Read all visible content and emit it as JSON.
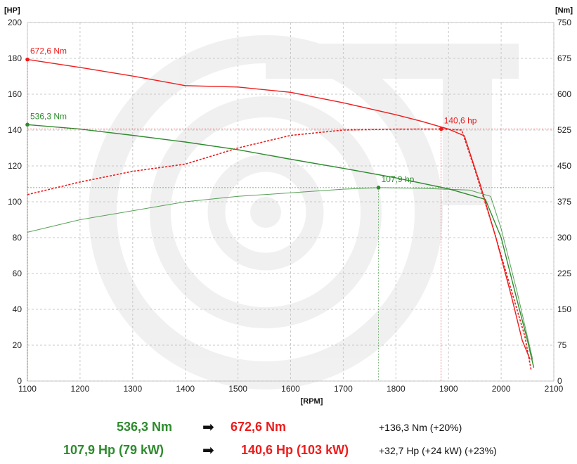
{
  "chart_data": {
    "type": "line",
    "xlabel": "[RPM]",
    "ylabel_left": "[HP]",
    "ylabel_right": "[Nm]",
    "xlim": [
      1100,
      2100
    ],
    "ylim_left": [
      0,
      200
    ],
    "ylim_right": [
      0,
      750
    ],
    "x_ticks": [
      1100,
      1200,
      1300,
      1400,
      1500,
      1600,
      1700,
      1800,
      1900,
      2000,
      2100
    ],
    "y_ticks_left": [
      0,
      20,
      40,
      60,
      80,
      100,
      120,
      140,
      160,
      180,
      200
    ],
    "y_ticks_right": [
      0,
      75,
      150,
      225,
      300,
      375,
      450,
      525,
      600,
      675,
      750
    ],
    "grid": true,
    "series": [
      {
        "axis": "right",
        "color": "#ee1c1c",
        "style": "solid",
        "points": [
          [
            1100,
            672.6
          ],
          [
            1200,
            656
          ],
          [
            1300,
            638
          ],
          [
            1400,
            618
          ],
          [
            1500,
            615
          ],
          [
            1600,
            604
          ],
          [
            1700,
            582
          ],
          [
            1800,
            557
          ],
          [
            1850,
            543
          ],
          [
            1900,
            527
          ],
          [
            1930,
            513
          ],
          [
            1960,
            412
          ],
          [
            1990,
            300
          ],
          [
            2020,
            175
          ],
          [
            2040,
            85
          ],
          [
            2055,
            45
          ]
        ]
      },
      {
        "axis": "left",
        "color": "#ee1c1c",
        "style": "dashed",
        "points": [
          [
            1100,
            104
          ],
          [
            1200,
            111
          ],
          [
            1300,
            117
          ],
          [
            1400,
            121
          ],
          [
            1500,
            130
          ],
          [
            1600,
            137
          ],
          [
            1700,
            140
          ],
          [
            1800,
            140.5
          ],
          [
            1886,
            140.6
          ],
          [
            1925,
            140
          ],
          [
            1950,
            118
          ],
          [
            1985,
            85
          ],
          [
            2015,
            55
          ],
          [
            2045,
            25
          ],
          [
            2057,
            6
          ]
        ]
      },
      {
        "axis": "right",
        "color": "#2e8b2e",
        "style": "solid",
        "points": [
          [
            1100,
            536.3
          ],
          [
            1200,
            527
          ],
          [
            1300,
            514
          ],
          [
            1400,
            500
          ],
          [
            1500,
            484
          ],
          [
            1600,
            464
          ],
          [
            1700,
            445
          ],
          [
            1800,
            425
          ],
          [
            1900,
            402
          ],
          [
            1970,
            380
          ],
          [
            2000,
            300
          ],
          [
            2030,
            170
          ],
          [
            2050,
            85
          ],
          [
            2062,
            28
          ]
        ]
      },
      {
        "axis": "left",
        "color": "#2e8b2e",
        "style": "thin",
        "points": [
          [
            1100,
            83
          ],
          [
            1200,
            90
          ],
          [
            1300,
            95
          ],
          [
            1400,
            100
          ],
          [
            1500,
            103
          ],
          [
            1600,
            105
          ],
          [
            1700,
            107
          ],
          [
            1767,
            107.9
          ],
          [
            1850,
            107.5
          ],
          [
            1940,
            106.5
          ],
          [
            1980,
            103
          ],
          [
            2000,
            85
          ],
          [
            2030,
            50
          ],
          [
            2060,
            12
          ]
        ]
      }
    ],
    "annotations": [
      {
        "text": "672,6 Nm",
        "x": 1100,
        "y": 672.6,
        "axis": "right",
        "color": "#ee1c1c"
      },
      {
        "text": "140,6 hp",
        "x": 1886,
        "y": 140.6,
        "axis": "left",
        "color": "#ee1c1c"
      },
      {
        "text": "536,3 Nm",
        "x": 1100,
        "y": 536.3,
        "axis": "right",
        "color": "#2e8b2e"
      },
      {
        "text": "107,9 hp",
        "x": 1767,
        "y": 107.9,
        "axis": "left",
        "color": "#2e8b2e"
      }
    ]
  },
  "summary": {
    "torque_stock": "536,3 Nm",
    "torque_tuned": "672,6 Nm",
    "torque_diff": "+136,3 Nm (+20%)",
    "power_stock": "107,9 Hp (79 kW)",
    "power_tuned": "140,6 Hp (103 kW)",
    "power_diff": "+32,7 Hp  (+24 kW)  (+23%)",
    "arrow": "➡"
  },
  "colors": {
    "stock": "#2e8b2e",
    "tuned": "#ee1c1c"
  }
}
